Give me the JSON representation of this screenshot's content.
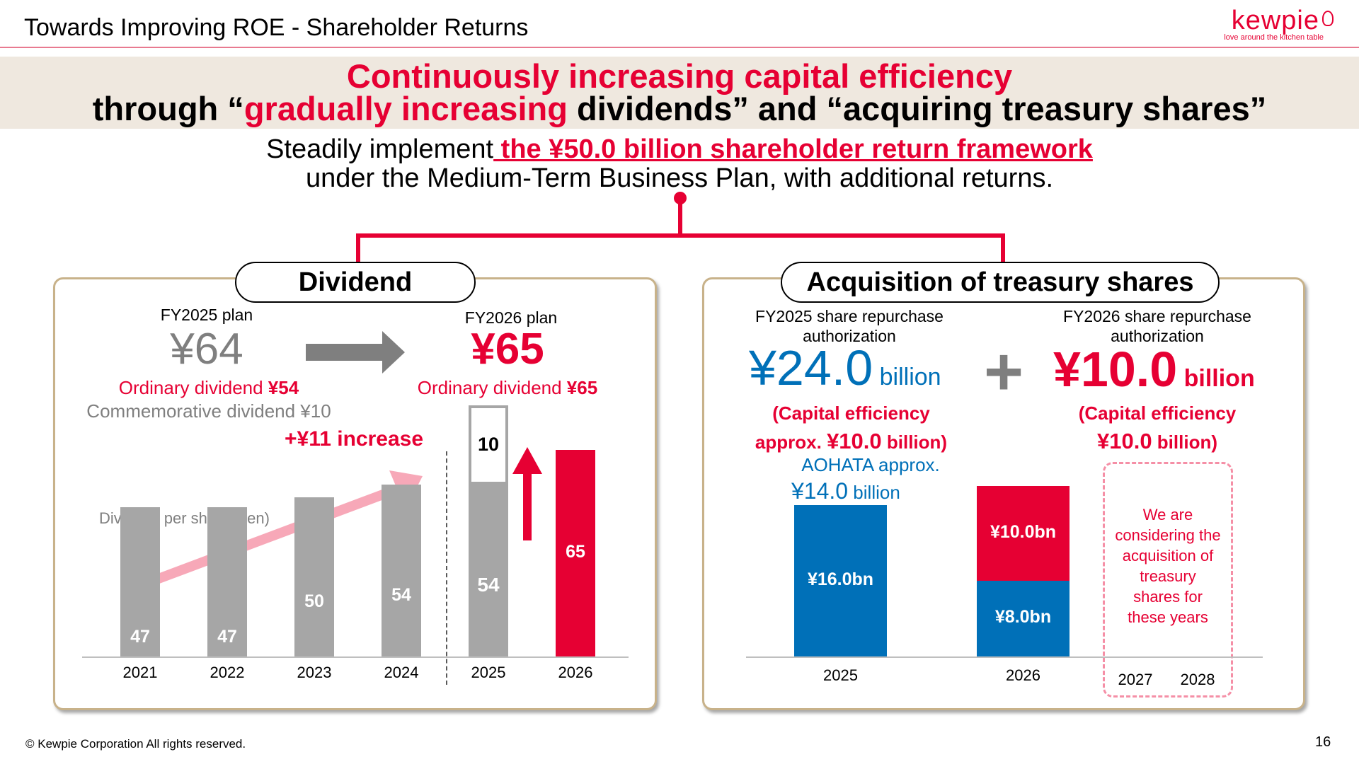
{
  "header": {
    "title": "Towards Improving ROE - Shareholder Returns",
    "logo_word": "kewpie",
    "logo_tagline": "love around the kitchen table"
  },
  "banner": {
    "line1": "Continuously increasing capital efficiency",
    "line2_pre": "through “",
    "line2_red": "gradually increasing",
    "line2_post": " dividends” and “acquiring treasury shares”"
  },
  "subtitle": {
    "line1_pre": "Steadily implement",
    "line1_highlight": " the ¥50.0 billion shareholder return framework",
    "line2": "under the Medium-Term Business Plan, with additional returns."
  },
  "dividend": {
    "heading": "Dividend",
    "fy2025_label": "FY2025 plan",
    "fy2025_value": "¥64",
    "fy2025_ordinary_label": "Ordinary dividend ",
    "fy2025_ordinary_value": "¥54",
    "fy2025_commemorative": "Commemorative dividend ¥10",
    "fy2026_label": "FY2026 plan",
    "fy2026_value": "¥65",
    "fy2026_ordinary_label": "Ordinary dividend ",
    "fy2026_ordinary_value": "¥65",
    "increase_label": "+¥11 increase",
    "series_label": "Dividend per share (yen)"
  },
  "chart_data": [
    {
      "type": "bar",
      "ylabel": "Dividend per share (yen)",
      "categories": [
        "2021",
        "2022",
        "2023",
        "2024",
        "2025",
        "2026"
      ],
      "series": [
        {
          "name": "Ordinary dividend",
          "values": [
            47,
            47,
            50,
            54,
            54,
            65
          ]
        },
        {
          "name": "Commemorative dividend",
          "values": [
            0,
            0,
            0,
            0,
            10,
            0
          ]
        }
      ],
      "labels": [
        "47",
        "47",
        "50",
        "54",
        "54",
        "65"
      ],
      "commemorative_label": "10",
      "ylim": [
        0,
        70
      ],
      "colors": {
        "past": "#a6a6a6",
        "plan": "#e60033",
        "commemorative_border": "#a6a6a6"
      }
    },
    {
      "type": "bar",
      "categories": [
        "2025",
        "2026"
      ],
      "series": [
        {
          "values": [
            16.0,
            8.0
          ],
          "labels": [
            "¥16.0bn",
            "¥8.0bn"
          ],
          "color": "#0070b8"
        },
        {
          "values": [
            0,
            10.0
          ],
          "labels": [
            "",
            "¥10.0bn"
          ],
          "color": "#e60033"
        }
      ],
      "ylim": [
        0,
        22
      ],
      "extra_categories": [
        "2027",
        "2028"
      ]
    }
  ],
  "treasury": {
    "heading": "Acquisition of treasury shares",
    "fy2025_label_l1": "FY2025 share repurchase",
    "fy2025_label_l2": "authorization",
    "fy2025_value": "¥24.0",
    "fy2025_unit": " billion",
    "fy2025_ce_l1": "(Capital efficiency",
    "fy2025_ce_l2_pre": "approx. ",
    "fy2025_ce_l2_num": "¥10.0",
    "fy2025_ce_l2_post": " billion)",
    "aohata_l1": "AOHATA approx.",
    "aohata_num": "¥14.0",
    "aohata_unit": " billion",
    "plus": "+",
    "fy2026_label_l1": "FY2026 share repurchase",
    "fy2026_label_l2": "authorization",
    "fy2026_value": "¥10.0",
    "fy2026_unit": " billion",
    "fy2026_ce_l1": "(Capital efficiency",
    "fy2026_ce_l2_num": "¥10.0",
    "fy2026_ce_l2_post": " billion)",
    "future_note": [
      "We are",
      "considering the",
      "acquisition of",
      "treasury",
      "shares for",
      "these years"
    ]
  },
  "footer": {
    "copyright": "© Kewpie Corporation All rights reserved.",
    "page": "16"
  }
}
